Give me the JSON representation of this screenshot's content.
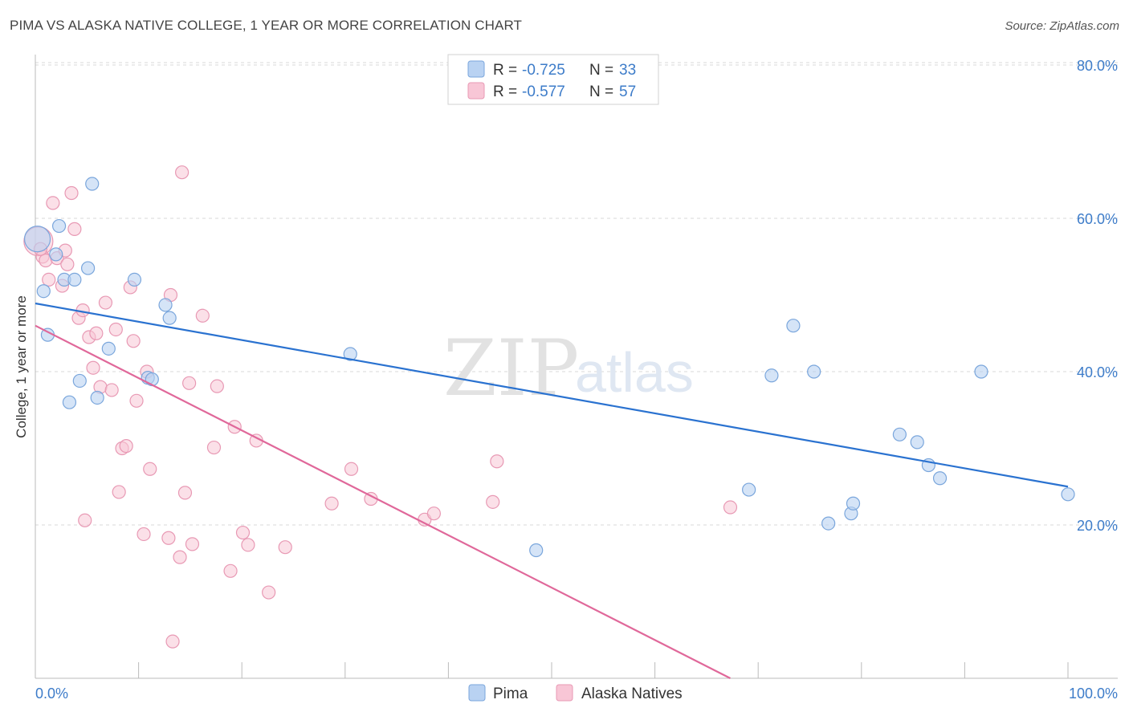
{
  "header": {
    "title": "PIMA VS ALASKA NATIVE COLLEGE, 1 YEAR OR MORE CORRELATION CHART",
    "source": "Source: ZipAtlas.com"
  },
  "watermark": {
    "zip": "ZIP",
    "atlas": "atlas"
  },
  "legend": [
    {
      "r_label": "R = ",
      "r_value": "-0.725",
      "n_label": "N = ",
      "n_value": "33"
    },
    {
      "r_label": "R = ",
      "r_value": "-0.577",
      "n_label": "N = ",
      "n_value": "57"
    }
  ],
  "bottom_legend": [
    {
      "label": "Pima"
    },
    {
      "label": "Alaska Natives"
    }
  ],
  "colors": {
    "pima_fill": "#b9d2f2",
    "pima_stroke": "#7aa6dc",
    "pima_line": "#2a72d0",
    "alaska_fill": "#f8c6d6",
    "alaska_stroke": "#e899b4",
    "alaska_line": "#e0689a",
    "grid": "#d8d8d8",
    "tick_text": "#3d7cc9"
  },
  "chart_data": {
    "type": "scatter",
    "ylabel": "College, 1 year or more",
    "xlim": [
      0,
      100
    ],
    "ylim": [
      0,
      80
    ],
    "x_tick_labels": [
      "0.0%",
      "100.0%"
    ],
    "y_ticks": [
      {
        "value": 20,
        "label": "20.0%"
      },
      {
        "value": 40,
        "label": "40.0%"
      },
      {
        "value": 60,
        "label": "60.0%"
      },
      {
        "value": 80,
        "label": "80.0%"
      }
    ],
    "grid": true,
    "series": [
      {
        "name": "Pima",
        "points": [
          [
            0.2,
            57.3
          ],
          [
            0.8,
            50.5
          ],
          [
            1.2,
            44.8
          ],
          [
            2.3,
            59.0
          ],
          [
            2.0,
            55.3
          ],
          [
            2.8,
            52.0
          ],
          [
            3.3,
            36.0
          ],
          [
            3.8,
            52.0
          ],
          [
            4.3,
            38.8
          ],
          [
            5.1,
            53.5
          ],
          [
            5.5,
            64.5
          ],
          [
            6.0,
            36.6
          ],
          [
            7.1,
            43.0
          ],
          [
            9.6,
            52.0
          ],
          [
            10.9,
            39.2
          ],
          [
            11.3,
            39.0
          ],
          [
            12.6,
            48.7
          ],
          [
            13.0,
            47.0
          ],
          [
            30.5,
            42.3
          ],
          [
            48.5,
            16.7
          ],
          [
            69.1,
            24.6
          ],
          [
            71.3,
            39.5
          ],
          [
            73.4,
            46.0
          ],
          [
            75.4,
            40.0
          ],
          [
            76.8,
            20.2
          ],
          [
            79.0,
            21.5
          ],
          [
            79.2,
            22.8
          ],
          [
            83.7,
            31.8
          ],
          [
            85.4,
            30.8
          ],
          [
            86.5,
            27.8
          ],
          [
            87.6,
            26.1
          ],
          [
            91.6,
            40.0
          ],
          [
            100.0,
            24.0
          ]
        ],
        "trend": {
          "x": [
            0,
            100
          ],
          "y": [
            48.9,
            25.0
          ]
        }
      },
      {
        "name": "Alaska Natives",
        "points": [
          [
            0.3,
            57.0
          ],
          [
            0.7,
            55.0
          ],
          [
            1.0,
            54.5
          ],
          [
            1.3,
            52.0
          ],
          [
            1.7,
            62.0
          ],
          [
            2.1,
            54.8
          ],
          [
            2.6,
            51.2
          ],
          [
            2.9,
            55.8
          ],
          [
            3.1,
            54.0
          ],
          [
            3.5,
            63.3
          ],
          [
            3.8,
            58.6
          ],
          [
            4.2,
            47.0
          ],
          [
            4.6,
            48.0
          ],
          [
            4.8,
            20.6
          ],
          [
            5.2,
            44.5
          ],
          [
            5.6,
            40.5
          ],
          [
            5.9,
            45.0
          ],
          [
            6.3,
            38.0
          ],
          [
            6.8,
            49.0
          ],
          [
            7.4,
            37.6
          ],
          [
            7.8,
            45.5
          ],
          [
            8.1,
            24.3
          ],
          [
            8.4,
            30.0
          ],
          [
            8.8,
            30.3
          ],
          [
            9.2,
            51.0
          ],
          [
            9.5,
            44.0
          ],
          [
            9.8,
            36.2
          ],
          [
            10.5,
            18.8
          ],
          [
            10.8,
            40.0
          ],
          [
            11.1,
            27.3
          ],
          [
            12.9,
            18.3
          ],
          [
            13.1,
            50.0
          ],
          [
            13.3,
            4.8
          ],
          [
            14.0,
            15.8
          ],
          [
            14.2,
            66.0
          ],
          [
            14.5,
            24.2
          ],
          [
            14.9,
            38.5
          ],
          [
            15.2,
            17.5
          ],
          [
            16.2,
            47.3
          ],
          [
            17.3,
            30.1
          ],
          [
            17.6,
            38.1
          ],
          [
            18.9,
            14.0
          ],
          [
            19.3,
            32.8
          ],
          [
            20.1,
            19.0
          ],
          [
            20.6,
            17.4
          ],
          [
            21.4,
            31.0
          ],
          [
            22.6,
            11.2
          ],
          [
            24.2,
            17.1
          ],
          [
            28.7,
            22.8
          ],
          [
            30.6,
            27.3
          ],
          [
            32.5,
            23.4
          ],
          [
            37.7,
            20.7
          ],
          [
            38.6,
            21.5
          ],
          [
            44.3,
            23.0
          ],
          [
            44.7,
            28.3
          ],
          [
            67.3,
            22.3
          ],
          [
            0.5,
            56.0
          ]
        ],
        "trend": {
          "x": [
            0,
            67.3
          ],
          "y": [
            46.0,
            0
          ]
        }
      }
    ]
  }
}
